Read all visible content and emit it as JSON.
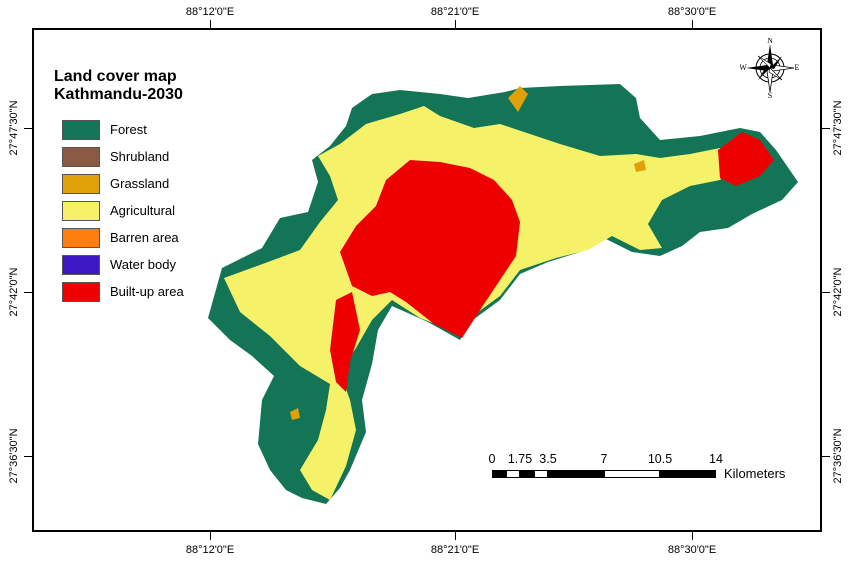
{
  "legend": {
    "title_line1": "Land cover map",
    "title_line2": "Kathmandu-2030",
    "items": [
      {
        "label": "Forest",
        "color": "#137556"
      },
      {
        "label": "Shrubland",
        "color": "#8a5a44"
      },
      {
        "label": "Grassland",
        "color": "#e0a008"
      },
      {
        "label": "Agricultural",
        "color": "#f5f26a"
      },
      {
        "label": "Barren area",
        "color": "#ff7f0e"
      },
      {
        "label": "Water body",
        "color": "#3c17c4"
      },
      {
        "label": "Built-up area",
        "color": "#ef0000"
      }
    ]
  },
  "graticule": {
    "lon_labels": [
      "88°12'0\"E",
      "88°21'0\"E",
      "88°30'0\"E"
    ],
    "lat_labels": [
      "27°47'30\"N",
      "27°42'0\"N",
      "27°36'30\"N"
    ]
  },
  "scale_bar": {
    "ticks": [
      "0",
      "1.75",
      "3.5",
      "7",
      "10.5",
      "14"
    ],
    "unit": "Kilometers"
  },
  "north_arrow": {
    "n": "N",
    "s": "S",
    "e": "E",
    "w": "W"
  }
}
